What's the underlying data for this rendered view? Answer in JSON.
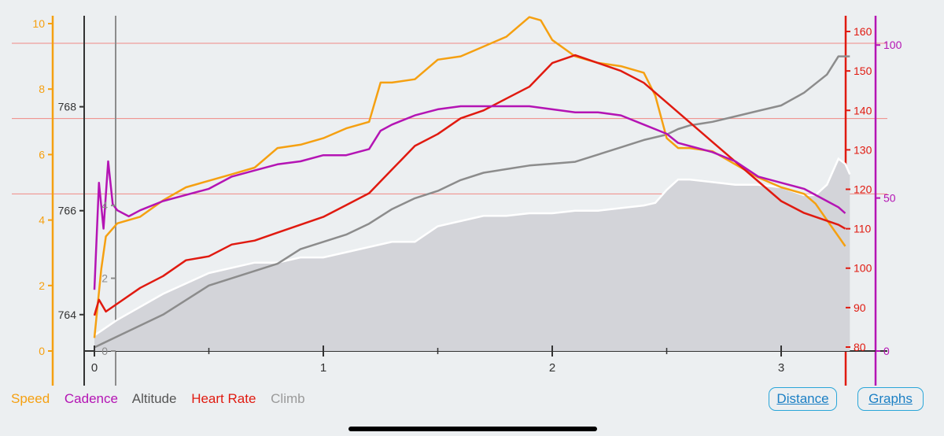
{
  "colors": {
    "speed": "#f5a011",
    "cadence": "#b414b4",
    "altitude": "#555555",
    "heart_rate": "#e01a10",
    "climb": "#8c8c8c",
    "accent": "#2aa6d9"
  },
  "legend": {
    "speed": "Speed",
    "cadence": "Cadence",
    "altitude": "Altitude",
    "heart_rate": "Heart Rate",
    "climb": "Climb"
  },
  "buttons": {
    "distance": "Distance",
    "graphs": "Graphs"
  },
  "chart_data": {
    "type": "line",
    "x_ticks": [
      "0",
      "1",
      "2",
      "3"
    ],
    "xlim": [
      0,
      3.3
    ],
    "axes": {
      "speed": {
        "ticks": [
          "0",
          "2",
          "4",
          "6",
          "8",
          "10"
        ],
        "ylim": [
          0,
          10
        ]
      },
      "altitude": {
        "ticks": [
          "764",
          "766",
          "768"
        ],
        "ylim": [
          763.3,
          769.6
        ]
      },
      "climb": {
        "ticks": [
          "0",
          "2",
          "4"
        ],
        "ylim": [
          0,
          9
        ]
      },
      "heart_rate": {
        "ticks": [
          "80",
          "90",
          "100",
          "110",
          "120",
          "130",
          "140",
          "150",
          "160"
        ],
        "ylim": [
          79,
          162
        ]
      },
      "cadence": {
        "ticks": [
          "0",
          "50",
          "100"
        ],
        "ylim": [
          0,
          107
        ]
      }
    },
    "gridlines_speed": [
      4.8,
      7.1,
      9.4
    ],
    "series": [
      {
        "name": "Altitude",
        "axis": "altitude",
        "fill": true,
        "x": [
          0,
          0.1,
          0.3,
          0.5,
          0.7,
          0.8,
          0.9,
          1.0,
          1.1,
          1.2,
          1.3,
          1.4,
          1.5,
          1.6,
          1.7,
          1.8,
          1.9,
          2.0,
          2.1,
          2.2,
          2.3,
          2.4,
          2.45,
          2.5,
          2.55,
          2.6,
          2.7,
          2.8,
          2.9,
          3.0,
          3.1,
          3.15,
          3.2,
          3.25,
          3.28,
          3.3
        ],
        "y": [
          763.6,
          763.9,
          764.4,
          764.8,
          765.0,
          765.0,
          765.1,
          765.1,
          765.2,
          765.3,
          765.4,
          765.4,
          765.7,
          765.8,
          765.9,
          765.9,
          765.95,
          765.95,
          766.0,
          766.0,
          766.05,
          766.1,
          766.15,
          766.4,
          766.6,
          766.6,
          766.55,
          766.5,
          766.5,
          766.45,
          766.3,
          766.3,
          766.5,
          767.0,
          766.9,
          766.7
        ]
      },
      {
        "name": "Climb",
        "axis": "climb",
        "x": [
          0,
          0.1,
          0.3,
          0.5,
          0.7,
          0.8,
          0.9,
          1.0,
          1.1,
          1.2,
          1.3,
          1.4,
          1.5,
          1.6,
          1.7,
          1.8,
          1.9,
          2.0,
          2.1,
          2.2,
          2.3,
          2.4,
          2.5,
          2.55,
          2.6,
          2.7,
          2.8,
          2.9,
          3.0,
          3.1,
          3.2,
          3.25,
          3.3
        ],
        "y": [
          0.1,
          0.4,
          1.0,
          1.8,
          2.2,
          2.4,
          2.8,
          3.0,
          3.2,
          3.5,
          3.9,
          4.2,
          4.4,
          4.7,
          4.9,
          5.0,
          5.1,
          5.15,
          5.2,
          5.4,
          5.6,
          5.8,
          5.95,
          6.1,
          6.2,
          6.3,
          6.45,
          6.6,
          6.75,
          7.1,
          7.6,
          8.1,
          8.1
        ]
      },
      {
        "name": "Speed",
        "axis": "speed",
        "x": [
          0,
          0.03,
          0.05,
          0.1,
          0.2,
          0.3,
          0.4,
          0.5,
          0.6,
          0.7,
          0.8,
          0.9,
          1.0,
          1.1,
          1.2,
          1.25,
          1.3,
          1.4,
          1.5,
          1.6,
          1.7,
          1.8,
          1.9,
          1.95,
          2.0,
          2.1,
          2.2,
          2.3,
          2.4,
          2.45,
          2.5,
          2.55,
          2.6,
          2.7,
          2.8,
          2.9,
          3.0,
          3.1,
          3.15,
          3.2,
          3.25,
          3.28
        ],
        "y": [
          0.4,
          2.5,
          3.5,
          3.9,
          4.1,
          4.6,
          5.0,
          5.2,
          5.4,
          5.6,
          6.2,
          6.3,
          6.5,
          6.8,
          7.0,
          8.2,
          8.2,
          8.3,
          8.9,
          9.0,
          9.3,
          9.6,
          10.2,
          10.1,
          9.5,
          9.0,
          8.8,
          8.7,
          8.5,
          7.8,
          6.5,
          6.2,
          6.2,
          6.1,
          5.7,
          5.3,
          5.0,
          4.8,
          4.5,
          4.0,
          3.5,
          3.2
        ]
      },
      {
        "name": "Heart Rate",
        "axis": "heart_rate",
        "x": [
          0,
          0.02,
          0.05,
          0.1,
          0.2,
          0.3,
          0.4,
          0.5,
          0.6,
          0.7,
          0.8,
          0.9,
          1.0,
          1.1,
          1.2,
          1.3,
          1.4,
          1.5,
          1.6,
          1.7,
          1.8,
          1.9,
          2.0,
          2.1,
          2.2,
          2.3,
          2.4,
          2.5,
          2.6,
          2.7,
          2.8,
          2.9,
          3.0,
          3.1,
          3.2,
          3.25,
          3.28
        ],
        "y": [
          88,
          92,
          89,
          91,
          95,
          98,
          102,
          103,
          106,
          107,
          109,
          111,
          113,
          116,
          119,
          125,
          131,
          134,
          138,
          140,
          143,
          146,
          152,
          154,
          152,
          150,
          147,
          142,
          137,
          132,
          127,
          122,
          117,
          114,
          112,
          111,
          110
        ]
      },
      {
        "name": "Cadence",
        "axis": "cadence",
        "x": [
          0,
          0.02,
          0.04,
          0.06,
          0.08,
          0.1,
          0.15,
          0.2,
          0.3,
          0.4,
          0.5,
          0.6,
          0.7,
          0.8,
          0.9,
          1.0,
          1.1,
          1.2,
          1.25,
          1.3,
          1.4,
          1.5,
          1.6,
          1.7,
          1.8,
          1.9,
          2.0,
          2.1,
          2.2,
          2.3,
          2.4,
          2.5,
          2.55,
          2.6,
          2.7,
          2.8,
          2.9,
          3.0,
          3.1,
          3.2,
          3.25,
          3.28
        ],
        "y": [
          20,
          55,
          40,
          62,
          48,
          46,
          44,
          46,
          49,
          51,
          53,
          57,
          59,
          61,
          62,
          64,
          64,
          66,
          72,
          74,
          77,
          79,
          80,
          80,
          80,
          80,
          79,
          78,
          78,
          77,
          74,
          71,
          68,
          67,
          65,
          62,
          57,
          55,
          53,
          49,
          47,
          45
        ]
      }
    ]
  }
}
